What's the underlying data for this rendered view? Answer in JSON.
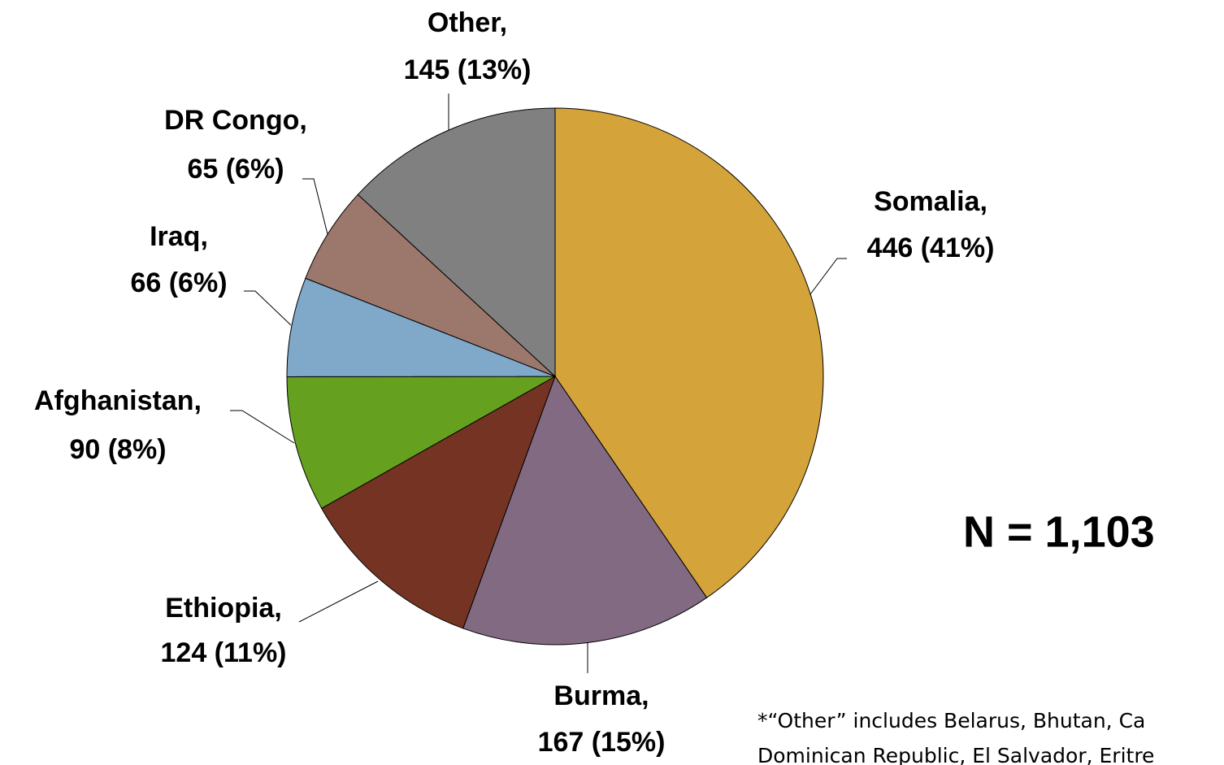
{
  "chart_data": {
    "type": "pie",
    "categories": [
      "Somalia,",
      "Burma,",
      "Ethiopia,",
      "Afghanistan,",
      "Iraq,",
      "DR Congo,",
      "Other,"
    ],
    "values": [
      446,
      167,
      124,
      90,
      66,
      65,
      145
    ],
    "value_labels": [
      "446 (41%)",
      "167 (15%)",
      "124 (11%)",
      "90 (8%)",
      "66 (6%)",
      "65 (6%)",
      "145 (13%)"
    ],
    "colors": [
      "#d4a33a",
      "#816a82",
      "#753423",
      "#65a01e",
      "#80a8c8",
      "#9c776c",
      "#808080"
    ],
    "annotation": "N = 1,103",
    "footnote": [
      "*“Other” includes Belarus, Bhutan, Ca",
      "Dominican Republic, El Salvador, Eritre"
    ]
  }
}
